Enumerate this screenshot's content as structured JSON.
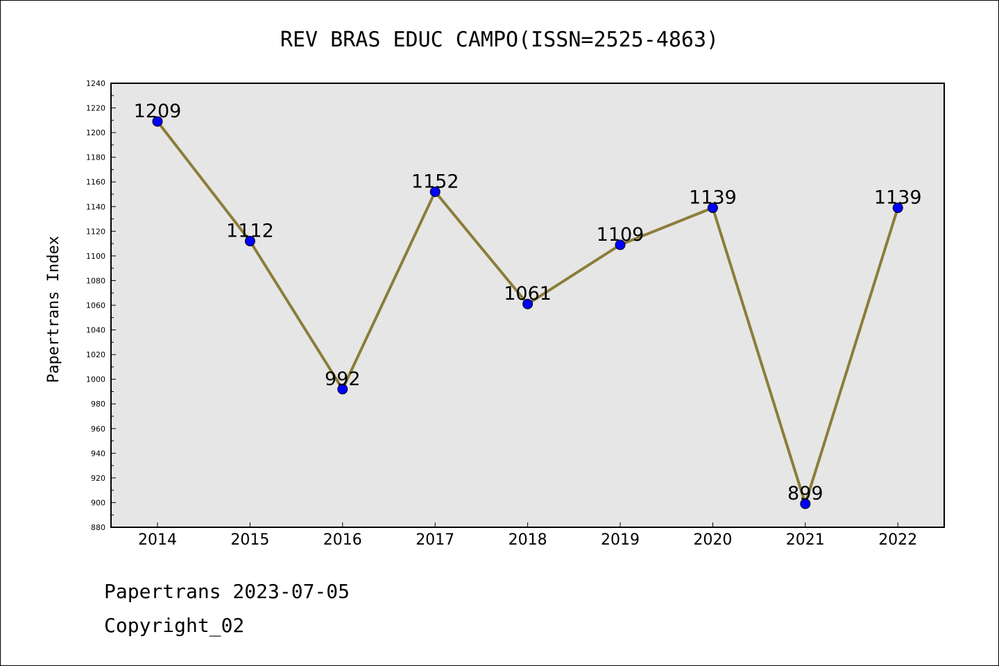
{
  "chart_data": {
    "type": "line",
    "title": "REV BRAS EDUC CAMPO(ISSN=2525-4863)",
    "xlabel": "",
    "ylabel": "Papertrans Index",
    "categories": [
      "2014",
      "2015",
      "2016",
      "2017",
      "2018",
      "2019",
      "2020",
      "2021",
      "2022"
    ],
    "series": [
      {
        "values": [
          1209,
          1112,
          992,
          1152,
          1061,
          1109,
          1139,
          899,
          1139
        ]
      }
    ],
    "data_labels": [
      "1209",
      "1112",
      "992",
      "1152",
      "1061",
      "1109",
      "1139",
      "899",
      "1139"
    ],
    "ylim": [
      880,
      1240
    ],
    "y_ticks": [
      880,
      900,
      920,
      940,
      960,
      980,
      1000,
      1020,
      1040,
      1060,
      1080,
      1100,
      1120,
      1140,
      1160,
      1180,
      1200,
      1220,
      1240
    ],
    "y_minor_step": 10,
    "grid": false,
    "colors": {
      "line": "#8b7d3a",
      "marker": "#0000ff",
      "plot_background": "#e6e6e6"
    }
  },
  "footer": {
    "line1": "Papertrans 2023-07-05",
    "line2": "Copyright_02"
  }
}
